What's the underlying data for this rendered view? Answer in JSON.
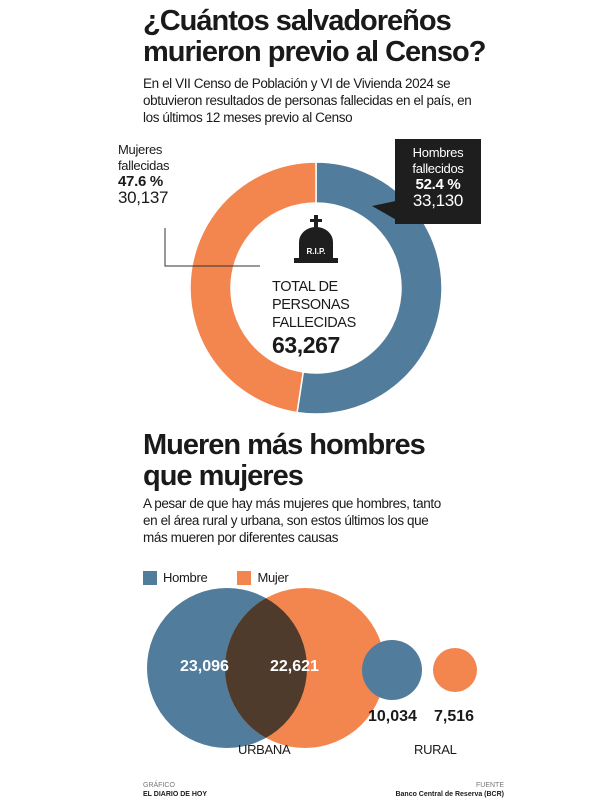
{
  "section1": {
    "title_line1": "¿Cuántos salvadoreños",
    "title_line2": "murieron previo al Censo?",
    "description": "En el VII Censo de Población y VI de Vivienda 2024 se obtuvieron resultados de personas fallecidas en el país, en los últimos 12 meses previo al Censo"
  },
  "section2": {
    "title_line1": "Mueren más hombres",
    "title_line2": "que mujeres",
    "description": "A pesar de que hay más mujeres que hombres, tanto en el área rural y urbana, son estos últimos los que más mueren por diferentes causas"
  },
  "footer": {
    "credit_label": "GRÁFICO",
    "credit": "EL DIARIO DE HOY",
    "source_label": "FUENTE",
    "source": "Banco Central de Reserva (BCR)"
  },
  "colors": {
    "hombre": "#527c9b",
    "mujer": "#f3864f",
    "overlap": "#4e3b2b"
  },
  "chart_data": [
    {
      "type": "pie",
      "subtype": "donut",
      "center": {
        "line1": "TOTAL DE",
        "line2": "PERSONAS",
        "line3": "FALLECIDAS",
        "total": "63,267",
        "icon": "tombstone-icon",
        "icon_text": "R.I.P."
      },
      "slices": [
        {
          "label_line1": "Hombres",
          "label_line2": "fallecidos",
          "percent": 52.4,
          "percent_label": "52.4 %",
          "value_label": "33,130",
          "color": "#527c9b"
        },
        {
          "label_line1": "Mujeres",
          "label_line2": "fallecidas",
          "percent": 47.6,
          "percent_label": "47.6 %",
          "value_label": "30,137",
          "color": "#f3864f"
        }
      ]
    },
    {
      "type": "venn",
      "legend": [
        {
          "name": "Hombre",
          "color": "#527c9b"
        },
        {
          "name": "Mujer",
          "color": "#f3864f"
        }
      ],
      "groups": [
        {
          "label": "URBANA",
          "hombre": "23,096",
          "mujer": "22,621"
        },
        {
          "label": "RURAL",
          "hombre": "10,034",
          "mujer": "7,516"
        }
      ]
    }
  ]
}
